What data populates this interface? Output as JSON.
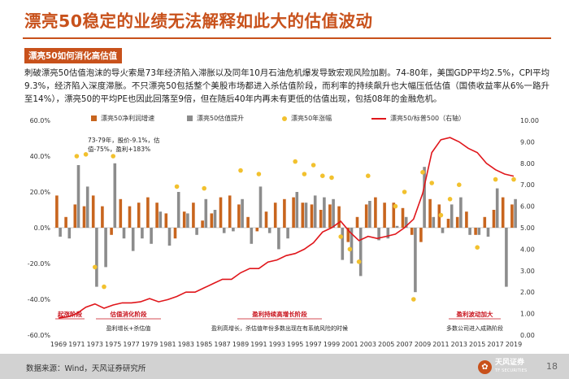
{
  "header": {
    "title": "漂亮50稳定的业绩无法解释如此大的估值波动",
    "section_label": "漂亮50如何消化高估值"
  },
  "body": {
    "paragraph": "刺破漂亮50估值泡沫的导火索是73年经济陷入滞胀以及同年10月石油危机爆发导致宏观风险加剧。74-80年，美国GDP平均2.5%，CPI平均9.3%，经济陷入深度滞胀。不只漂亮50包括整个美股市场都进入杀估值阶段，而利率的持续飙升也大幅压低估值（国债收益率从6%一路升至14%），漂亮50的平均PE也因此回落至9倍，但在随后40年内再未有更低的估值出现，包括08年的金融危机。"
  },
  "colors": {
    "brand": "#c8511b",
    "earnings_bar": "#c8651e",
    "valuation_bar": "#8c8c8c",
    "price_dot": "#f2c12e",
    "ratio_line": "#e0161b"
  },
  "chart_data": {
    "type": "bar+line",
    "legend": {
      "earnings": "漂亮50净利润增速",
      "valuation": "漂亮50估值提升",
      "price": "漂亮50年涨幅",
      "ratio": "漂亮50/标普500（右轴）"
    },
    "y_left": {
      "min": -60,
      "max": 60,
      "ticks": [
        "60.0%",
        "40.0%",
        "20.0%",
        "0.0%",
        "-20.0%",
        "-40.0%",
        "-60.0%"
      ]
    },
    "y_right": {
      "min": 0,
      "max": 10,
      "ticks": [
        "10.00",
        "9.00",
        "8.00",
        "7.00",
        "6.00",
        "5.00",
        "4.00",
        "3.00",
        "2.00",
        "1.00",
        "0.00"
      ]
    },
    "x_tick_labels": [
      "1969",
      "1971",
      "1973",
      "1975",
      "1977",
      "1979",
      "1981",
      "1983",
      "1985",
      "1987",
      "1989",
      "1991",
      "1993",
      "1995",
      "1997",
      "1999",
      "2001",
      "2003",
      "2005",
      "2007",
      "2009",
      "2011",
      "2013",
      "2015",
      "2017",
      "2019"
    ],
    "years": [
      1969,
      1970,
      1971,
      1972,
      1973,
      1974,
      1975,
      1976,
      1977,
      1978,
      1979,
      1980,
      1981,
      1982,
      1983,
      1984,
      1985,
      1986,
      1987,
      1988,
      1989,
      1990,
      1991,
      1992,
      1993,
      1994,
      1995,
      1996,
      1997,
      1998,
      1999,
      2000,
      2001,
      2002,
      2003,
      2004,
      2005,
      2006,
      2007,
      2008,
      2009,
      2010,
      2011,
      2012,
      2013,
      2014,
      2015,
      2016,
      2017,
      2018,
      2019
    ],
    "earnings_growth": [
      18,
      6,
      13,
      12,
      18,
      12,
      -4,
      16,
      12,
      14,
      17,
      14,
      8,
      -6,
      9,
      14,
      4,
      8,
      17,
      18,
      13,
      6,
      -2,
      9,
      14,
      16,
      17,
      14,
      13,
      10,
      13,
      12,
      -8,
      6,
      13,
      17,
      14,
      14,
      11,
      -4,
      -8,
      16,
      13,
      5,
      6,
      9,
      -4,
      6,
      10,
      17,
      13
    ],
    "valuation_change": [
      -5,
      -6,
      35,
      23,
      -33,
      -22,
      36,
      -6,
      -13,
      -6,
      -9,
      9,
      -10,
      20,
      8,
      -4,
      16,
      10,
      -3,
      -2,
      16,
      -9,
      23,
      -3,
      -12,
      -6,
      20,
      14,
      18,
      17,
      16,
      -18,
      -20,
      -27,
      15,
      -7,
      -6,
      1,
      6,
      -36,
      34,
      6,
      -3,
      13,
      17,
      -4,
      -4,
      -5,
      22,
      -33,
      16
    ],
    "price_change": [
      null,
      null,
      40,
      41,
      -22,
      -33,
      40,
      null,
      null,
      null,
      null,
      null,
      null,
      23,
      null,
      null,
      22,
      null,
      null,
      null,
      32,
      null,
      30,
      null,
      null,
      null,
      37,
      30,
      35,
      29,
      28,
      -5,
      -12,
      -19,
      29,
      null,
      null,
      12,
      20,
      -40,
      31,
      25,
      7,
      16,
      24,
      null,
      -11,
      null,
      27,
      null,
      27
    ],
    "ratio_right_axis": [
      [
        1969,
        0.8
      ],
      [
        1970,
        0.85
      ],
      [
        1971,
        1.0
      ],
      [
        1972,
        1.3
      ],
      [
        1973,
        1.45
      ],
      [
        1974,
        1.25
      ],
      [
        1975,
        1.4
      ],
      [
        1976,
        1.5
      ],
      [
        1977,
        1.5
      ],
      [
        1978,
        1.55
      ],
      [
        1979,
        1.7
      ],
      [
        1980,
        1.55
      ],
      [
        1981,
        1.65
      ],
      [
        1982,
        1.8
      ],
      [
        1983,
        2.0
      ],
      [
        1984,
        2.0
      ],
      [
        1985,
        2.2
      ],
      [
        1986,
        2.4
      ],
      [
        1987,
        2.6
      ],
      [
        1988,
        2.6
      ],
      [
        1989,
        2.9
      ],
      [
        1990,
        3.1
      ],
      [
        1991,
        3.1
      ],
      [
        1992,
        3.4
      ],
      [
        1993,
        3.5
      ],
      [
        1994,
        3.7
      ],
      [
        1995,
        3.8
      ],
      [
        1996,
        4.0
      ],
      [
        1997,
        4.3
      ],
      [
        1998,
        4.8
      ],
      [
        1999,
        5.0
      ],
      [
        2000,
        5.3
      ],
      [
        2001,
        4.8
      ],
      [
        2002,
        4.4
      ],
      [
        2003,
        4.6
      ],
      [
        2004,
        4.5
      ],
      [
        2005,
        4.6
      ],
      [
        2006,
        4.7
      ],
      [
        2007,
        5.0
      ],
      [
        2008,
        5.4
      ],
      [
        2009,
        6.6
      ],
      [
        2010,
        8.5
      ],
      [
        2011,
        9.1
      ],
      [
        2012,
        9.2
      ],
      [
        2013,
        9.0
      ],
      [
        2014,
        8.7
      ],
      [
        2015,
        8.5
      ],
      [
        2016,
        8.0
      ],
      [
        2017,
        7.7
      ],
      [
        2018,
        7.5
      ],
      [
        2019,
        7.4
      ]
    ],
    "annotations": {
      "note_line1": "73-79年，股价-9.1%，估",
      "note_line2": "值-75%，盈利+183%",
      "phase_start": "起涨阶段",
      "phase_digest": "估值消化阶段",
      "phase_digest_desc": "盈利增长+杀估值",
      "phase_sustain": "盈利持续高增长阶段",
      "phase_sustain_desc": "盈利高增长，杀估值年份多数出现在有系统风险的时候",
      "phase_volatile": "盈利波动加大",
      "phase_volatile_desc": "多数公司进入成熟阶段"
    }
  },
  "footer": {
    "source": "数据来源：Wind，天风证券研究所",
    "logo_text": "天风证券",
    "logo_sub": "TF SECURITIES",
    "page_number": "18"
  }
}
